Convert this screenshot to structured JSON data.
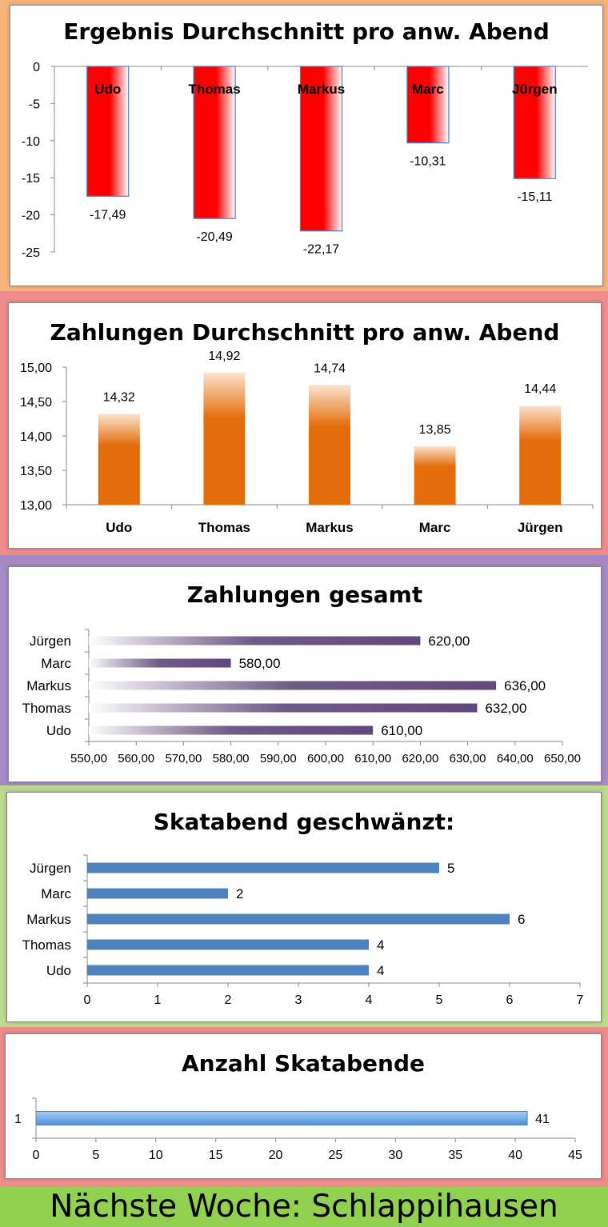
{
  "colors": {
    "chart1_band": "#f6b37a",
    "chart2_band": "#ef8b8b",
    "chart3_band": "#a58bc4",
    "chart4_band": "#bcd98d",
    "chart5_band": "#ef8b8b",
    "footer_bg": "#92d050",
    "bar_red": "#ff0000",
    "bar_orange": "#e46c0a",
    "bar_purple": "#5f497a",
    "bar_blue": "#4f81bd",
    "bar_lightblue": "#79aee8"
  },
  "footer": {
    "text": "Nächste Woche:  Schlappihausen"
  },
  "chart_data": [
    {
      "type": "bar",
      "title": "Ergebnis Durchschnitt pro anw. Abend",
      "categories": [
        "Udo",
        "Thomas",
        "Markus",
        "Marc",
        "Jürgen"
      ],
      "values": [
        -17.49,
        -20.49,
        -22.17,
        -10.31,
        -15.11
      ],
      "value_labels": [
        "-17,49",
        "-20,49",
        "-22,17",
        "-10,31",
        "-15,11"
      ],
      "ylim": [
        -25,
        0
      ],
      "yticks": [
        0,
        -5,
        -10,
        -15,
        -20,
        -25
      ],
      "ytick_labels": [
        "0",
        "-5",
        "-10",
        "-15",
        "-20",
        "-25"
      ]
    },
    {
      "type": "bar",
      "title": "Zahlungen Durchschnitt pro anw. Abend",
      "categories": [
        "Udo",
        "Thomas",
        "Markus",
        "Marc",
        "Jürgen"
      ],
      "values": [
        14.32,
        14.92,
        14.74,
        13.85,
        14.44
      ],
      "value_labels": [
        "14,32",
        "14,92",
        "14,74",
        "13,85",
        "14,44"
      ],
      "ylim": [
        13,
        15
      ],
      "yticks": [
        15,
        14.5,
        14,
        13.5,
        13
      ],
      "ytick_labels": [
        "15,00",
        "14,50",
        "14,00",
        "13,50",
        "13,00"
      ]
    },
    {
      "type": "bar",
      "orientation": "horizontal",
      "title": "Zahlungen gesamt",
      "categories": [
        "Jürgen",
        "Marc",
        "Markus",
        "Thomas",
        "Udo"
      ],
      "values": [
        620,
        580,
        636,
        632,
        610
      ],
      "value_labels": [
        "620,00",
        "580,00",
        "636,00",
        "632,00",
        "610,00"
      ],
      "xlim": [
        550,
        650
      ],
      "xticks": [
        550,
        560,
        570,
        580,
        590,
        600,
        610,
        620,
        630,
        640,
        650
      ],
      "xtick_labels": [
        "550,00",
        "560,00",
        "570,00",
        "580,00",
        "590,00",
        "600,00",
        "610,00",
        "620,00",
        "630,00",
        "640,00",
        "650,00"
      ]
    },
    {
      "type": "bar",
      "orientation": "horizontal",
      "title": "Skatabend geschwänzt:",
      "categories": [
        "Jürgen",
        "Marc",
        "Markus",
        "Thomas",
        "Udo"
      ],
      "values": [
        5,
        2,
        6,
        4,
        4
      ],
      "value_labels": [
        "5",
        "2",
        "6",
        "4",
        "4"
      ],
      "xlim": [
        0,
        7
      ],
      "xticks": [
        0,
        1,
        2,
        3,
        4,
        5,
        6,
        7
      ],
      "xtick_labels": [
        "0",
        "1",
        "2",
        "3",
        "4",
        "5",
        "6",
        "7"
      ]
    },
    {
      "type": "bar",
      "orientation": "horizontal",
      "title": "Anzahl Skatabende",
      "categories": [
        "1"
      ],
      "values": [
        41
      ],
      "value_labels": [
        "41"
      ],
      "xlim": [
        0,
        45
      ],
      "xticks": [
        0,
        5,
        10,
        15,
        20,
        25,
        30,
        35,
        40,
        45
      ],
      "xtick_labels": [
        "0",
        "5",
        "10",
        "15",
        "20",
        "25",
        "30",
        "35",
        "40",
        "45"
      ]
    }
  ]
}
